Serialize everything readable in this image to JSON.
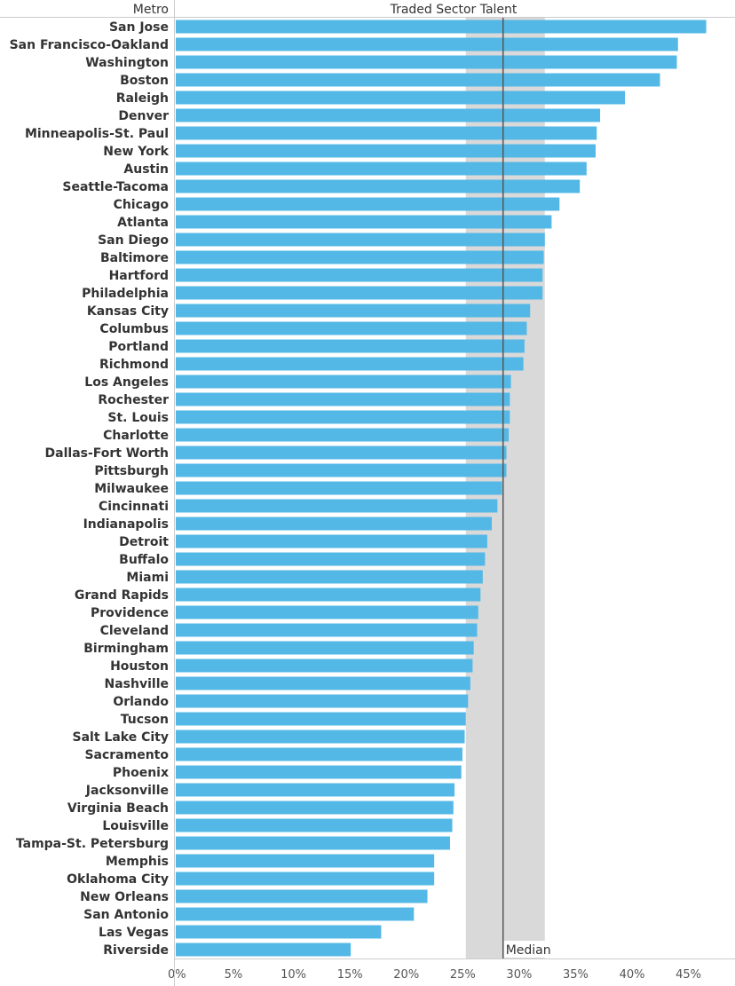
{
  "chart_data": {
    "type": "bar",
    "orientation": "horizontal",
    "row_header": "Metro",
    "column_header": "Traded Sector Talent",
    "categories": [
      "San Jose",
      "San Francisco-Oakland",
      "Washington",
      "Boston",
      "Raleigh",
      "Denver",
      "Minneapolis-St. Paul",
      "New York",
      "Austin",
      "Seattle-Tacoma",
      "Chicago",
      "Atlanta",
      "San Diego",
      "Baltimore",
      "Hartford",
      "Philadelphia",
      "Kansas City",
      "Columbus",
      "Portland",
      "Richmond",
      "Los Angeles",
      "Rochester",
      "St. Louis",
      "Charlotte",
      "Dallas-Fort Worth",
      "Pittsburgh",
      "Milwaukee",
      "Cincinnati",
      "Indianapolis",
      "Detroit",
      "Buffalo",
      "Miami",
      "Grand Rapids",
      "Providence",
      "Cleveland",
      "Birmingham",
      "Houston",
      "Nashville",
      "Orlando",
      "Tucson",
      "Salt Lake City",
      "Sacramento",
      "Phoenix",
      "Jacksonville",
      "Virginia Beach",
      "Louisville",
      "Tampa-St. Petersburg",
      "Memphis",
      "Oklahoma City",
      "New Orleans",
      "San Antonio",
      "Las Vegas",
      "Riverside"
    ],
    "values": [
      47.0,
      44.5,
      44.4,
      42.9,
      39.8,
      37.6,
      37.3,
      37.2,
      36.4,
      35.8,
      34.0,
      33.3,
      32.7,
      32.6,
      32.5,
      32.5,
      31.4,
      31.1,
      30.9,
      30.8,
      29.7,
      29.6,
      29.6,
      29.5,
      29.3,
      29.3,
      28.9,
      28.5,
      28.0,
      27.6,
      27.4,
      27.2,
      27.0,
      26.8,
      26.7,
      26.4,
      26.3,
      26.1,
      25.9,
      25.7,
      25.6,
      25.4,
      25.3,
      24.7,
      24.6,
      24.5,
      24.3,
      22.9,
      22.9,
      22.3,
      21.1,
      18.2,
      15.5
    ],
    "x_ticks": [
      "0%",
      "5%",
      "10%",
      "15%",
      "20%",
      "25%",
      "30%",
      "35%",
      "40%",
      "45%"
    ],
    "xlim": [
      0,
      49
    ],
    "median": 29.0,
    "median_label": "Median",
    "band": [
      25.7,
      32.7
    ],
    "colors": {
      "bar": "#53b8e6",
      "band": "#d9d9d9",
      "median_line": "#555555"
    }
  }
}
